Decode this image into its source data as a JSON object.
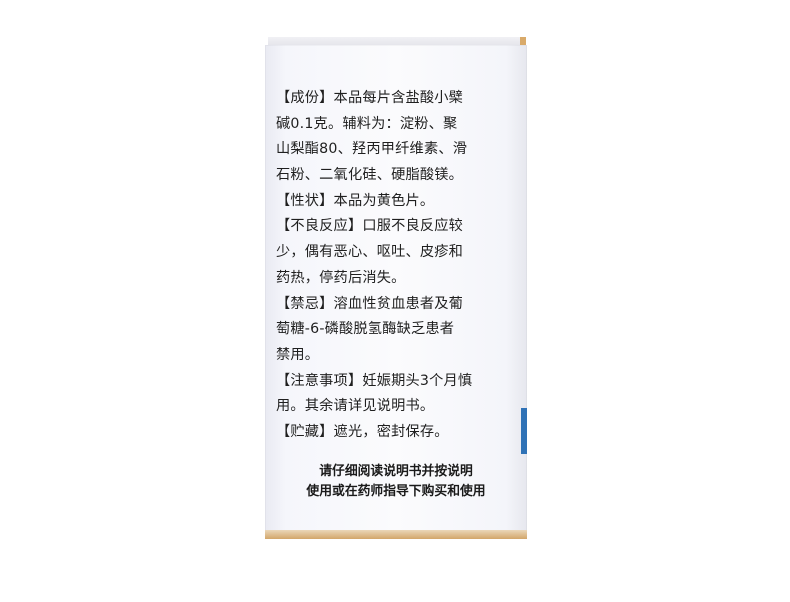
{
  "package_side": {
    "lines": [
      "【成份】本品每片含盐酸小檗",
      "碱0.1克。辅料为：淀粉、聚",
      "山梨酯80、羟丙甲纤维素、滑",
      "石粉、二氧化硅、硬脂酸镁。",
      "【性状】本品为黄色片。",
      "【不良反应】口服不良反应较",
      "少，偶有恶心、呕吐、皮疹和",
      "药热，停药后消失。",
      "【禁忌】溶血性贫血患者及葡",
      "萄糖-6-磷酸脱氢酶缺乏患者",
      "禁用。",
      "【注意事项】妊娠期头3个月慎",
      "用。其余请详见说明书。",
      "【贮藏】遮光，密封保存。"
    ],
    "footer_lines": [
      "请仔细阅读说明书并按说明",
      "使用或在药师指导下购买和使用"
    ]
  },
  "colors": {
    "text": "#1f1f1f",
    "accent_stripe": "#2f72b6",
    "box_edge": "#d2a66a"
  }
}
